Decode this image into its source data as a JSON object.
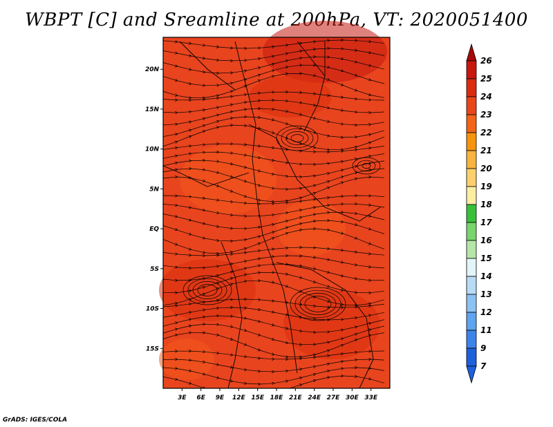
{
  "title": "WBPT [C] and Sreamline at 200hPa, VT: 2020051400",
  "credit": "GrADS: IGES/COLA",
  "map": {
    "lon_range": [
      0,
      36
    ],
    "lat_range": [
      -20,
      24
    ],
    "x_ticks": [
      "3E",
      "6E",
      "9E",
      "12E",
      "15E",
      "18E",
      "21E",
      "24E",
      "27E",
      "30E",
      "33E"
    ],
    "y_ticks": [
      "20N",
      "15N",
      "10N",
      "5N",
      "EQ",
      "5S",
      "10S",
      "15S"
    ],
    "fill_color": "#e8441e",
    "field_colors": [
      "#c41a10",
      "#d8300f",
      "#e8441e",
      "#f2591d"
    ]
  },
  "colorbar": {
    "levels": [
      "26",
      "25",
      "24",
      "23",
      "22",
      "21",
      "20",
      "19",
      "18",
      "17",
      "16",
      "15",
      "14",
      "13",
      "12",
      "11",
      "9",
      "7"
    ],
    "colors": [
      "#a50b08",
      "#c8170e",
      "#dc2c10",
      "#e9461a",
      "#f26418",
      "#f7930d",
      "#f8b43e",
      "#fbd06c",
      "#fdeda3",
      "#38c03b",
      "#78d46c",
      "#b5e6a9",
      "#e2f5f8",
      "#b8dcf6",
      "#8cc2f2",
      "#5ea4ee",
      "#3d84ea",
      "#1f60dc"
    ]
  }
}
